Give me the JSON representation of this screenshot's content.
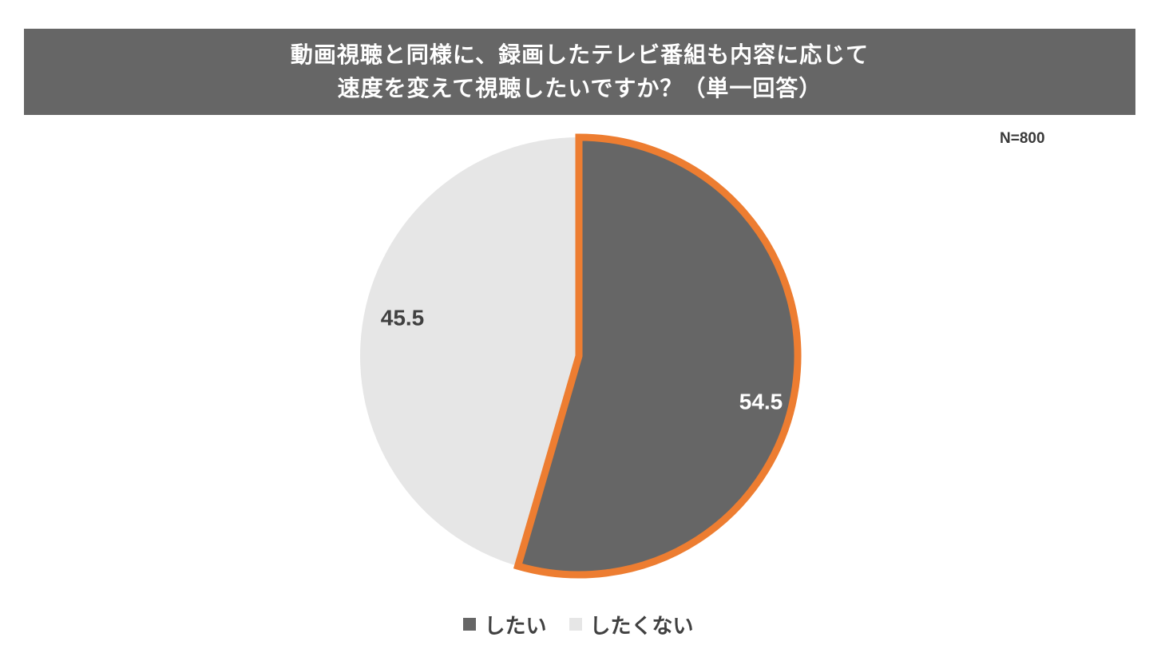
{
  "header": {
    "title_line1": "動画視聴と同様に、録画したテレビ番組も内容に応じて",
    "title_line2": "速度を変えて視聴したいですか？（単一回答）"
  },
  "sample_size": "N=800",
  "chart_data": {
    "type": "pie",
    "title": "動画視聴と同様に、録画したテレビ番組も内容に応じて速度を変えて視聴したいですか？（単一回答）",
    "categories": [
      "したい",
      "したくない"
    ],
    "values": [
      54.5,
      45.5
    ],
    "value_labels": [
      "54.5",
      "45.5"
    ],
    "colors": [
      "#666666",
      "#e6e6e6"
    ],
    "highlight_color": "#ed7d31",
    "highlighted_slice": "したい",
    "start_angle": "12 o'clock, clockwise",
    "legend_position": "bottom"
  },
  "legend": {
    "items": [
      {
        "label": "したい",
        "color": "#666666"
      },
      {
        "label": "したくない",
        "color": "#e6e6e6"
      }
    ]
  }
}
